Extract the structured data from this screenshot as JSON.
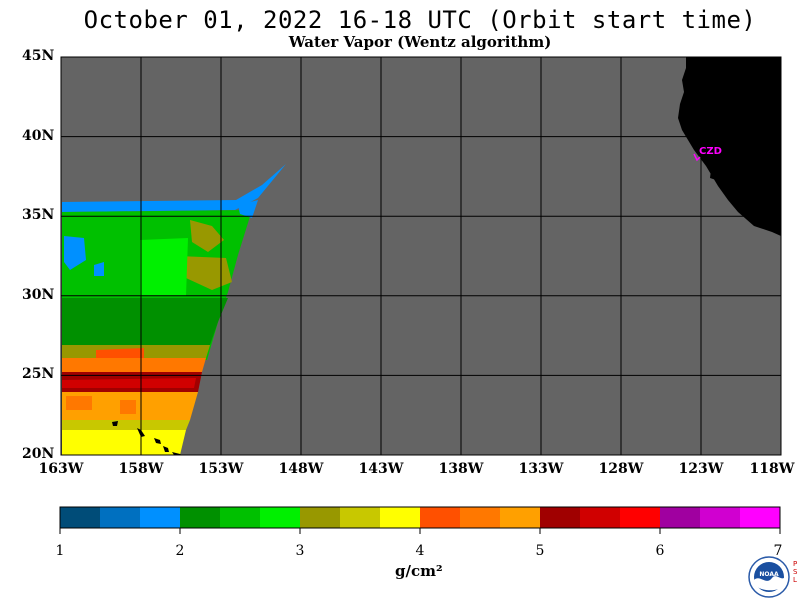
{
  "title": "October 01, 2022  16-18 UTC  (Orbit start time)",
  "subtitle": "Water Vapor (Wentz algorithm)",
  "map": {
    "lon_range": [
      -163,
      -118
    ],
    "lat_range": [
      20,
      45
    ],
    "lat_labels": [
      "45N",
      "40N",
      "35N",
      "30N",
      "25N",
      "20N"
    ],
    "lon_labels": [
      "163W",
      "158W",
      "153W",
      "148W",
      "143W",
      "138W",
      "133W",
      "128W",
      "123W",
      "118W"
    ],
    "ocean_color": "#646464",
    "land_color": "#000000",
    "grid": true,
    "station_label": "CZD"
  },
  "colorbar": {
    "ticks": [
      "1",
      "2",
      "3",
      "4",
      "5",
      "6",
      "7"
    ],
    "units": "g/cm²",
    "colors": [
      "#004c78",
      "#0070c0",
      "#0090ff",
      "#009000",
      "#00c000",
      "#00f000",
      "#989800",
      "#c8c800",
      "#ffff00",
      "#ff5000",
      "#ff7800",
      "#ffa000",
      "#a00000",
      "#d00000",
      "#ff0000",
      "#a000a0",
      "#d000d0",
      "#ff00ff"
    ]
  },
  "logo": {
    "name": "noaa-logo",
    "side_text": "PSL"
  }
}
